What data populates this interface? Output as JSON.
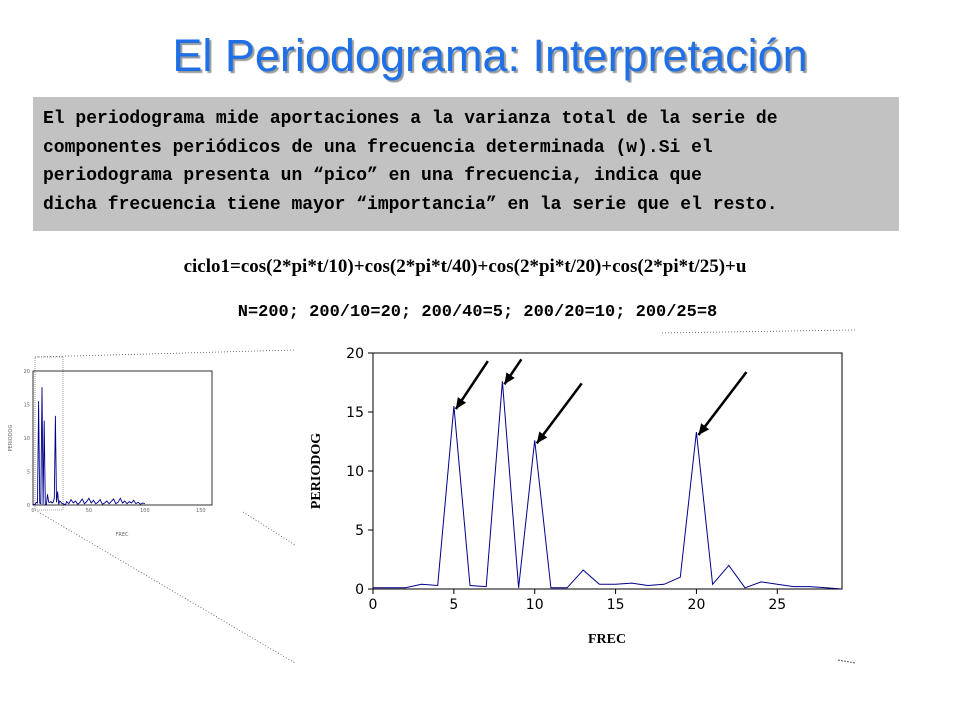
{
  "slide": {
    "title": "El Periodograma: Interpretación",
    "description_lines": [
      "El periodograma mide aportaciones a la varianza total de la serie de",
      "componentes periódicos de una frecuencia determinada (w).Si el",
      "periodograma presenta un “pico” en una frecuencia, indica que",
      "dicha frecuencia tiene mayor “importancia” en la serie que el resto."
    ],
    "formula": "ciclo1=cos(2*pi*t/10)+cos(2*pi*t/40)+cos(2*pi*t/20)+cos(2*pi*t/25)+u",
    "n_calc": "N=200; 200/10=20; 200/40=5; 200/20=10; 200/25=8"
  },
  "colors": {
    "title": "#1f6fe6",
    "line": "#00008b",
    "panel": "#c2c2c2"
  },
  "chart_data": [
    {
      "type": "line",
      "xlabel": "FREC",
      "ylabel": "PERIODOG",
      "xlim": [
        0,
        29
      ],
      "ylim": [
        0,
        20
      ],
      "xticks": [
        0,
        5,
        10,
        15,
        20,
        25
      ],
      "yticks": [
        0,
        5,
        10,
        15,
        20
      ],
      "x": [
        0,
        1,
        2,
        3,
        4,
        5,
        6,
        7,
        8,
        9,
        10,
        11,
        12,
        13,
        14,
        15,
        16,
        17,
        18,
        19,
        20,
        21,
        22,
        23,
        24,
        25,
        26,
        27,
        28,
        29
      ],
      "y": [
        0.1,
        0.1,
        0.1,
        0.4,
        0.3,
        15.5,
        0.3,
        0.2,
        17.6,
        0.1,
        12.6,
        0.1,
        0.1,
        1.6,
        0.4,
        0.4,
        0.5,
        0.3,
        0.4,
        1.0,
        13.3,
        0.4,
        2.0,
        0.1,
        0.6,
        0.4,
        0.2,
        0.2,
        0.1,
        0.0
      ],
      "annotations": [
        "arrow to peak at 5",
        "arrow to peak at 8",
        "arrow to peak at 10",
        "arrow to peak at 20"
      ]
    },
    {
      "type": "line",
      "xlabel": "FREC",
      "ylabel": "PERIODOG",
      "xlim": [
        0,
        100
      ],
      "ylim": [
        0,
        20
      ],
      "xticks": [
        0,
        50,
        100,
        150
      ],
      "yticks": [
        0,
        5,
        10,
        15,
        20
      ],
      "x": [
        0,
        1,
        2,
        3,
        4,
        5,
        6,
        7,
        8,
        9,
        10,
        11,
        12,
        13,
        14,
        15,
        16,
        17,
        18,
        19,
        20,
        21,
        22,
        23,
        24,
        25,
        26,
        27,
        28,
        29,
        30,
        32,
        34,
        36,
        38,
        40,
        42,
        44,
        46,
        48,
        50,
        52,
        54,
        56,
        58,
        60,
        62,
        64,
        66,
        68,
        70,
        72,
        74,
        76,
        78,
        80,
        82,
        84,
        86,
        88,
        90,
        92,
        94,
        96,
        98,
        100
      ],
      "y": [
        0.1,
        0.1,
        0.1,
        0.4,
        0.3,
        15.5,
        0.3,
        0.2,
        17.6,
        0.1,
        12.6,
        0.1,
        0.1,
        1.6,
        0.4,
        0.4,
        0.5,
        0.3,
        0.4,
        1.0,
        13.3,
        0.4,
        2.0,
        0.1,
        0.6,
        0.4,
        0.2,
        0.2,
        0.1,
        0.0,
        0.5,
        0.2,
        0.8,
        0.3,
        0.6,
        0.1,
        0.4,
        0.9,
        0.2,
        0.5,
        1.0,
        0.3,
        0.7,
        0.2,
        0.4,
        0.8,
        0.1,
        0.3,
        0.6,
        0.2,
        0.5,
        0.9,
        0.2,
        0.4,
        1.0,
        0.3,
        0.6,
        0.2,
        0.5,
        0.3,
        0.7,
        0.2,
        0.4,
        0.1,
        0.3,
        0.2
      ]
    }
  ]
}
